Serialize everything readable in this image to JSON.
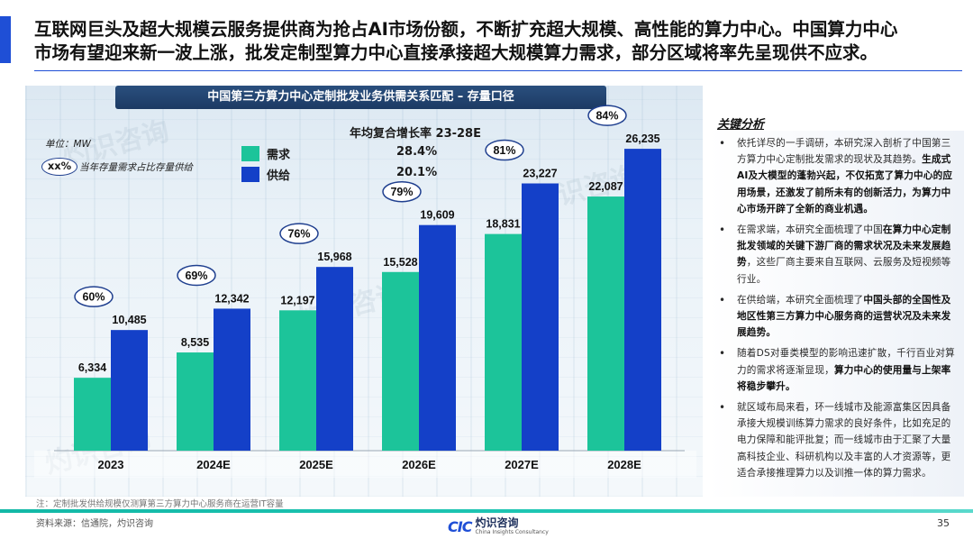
{
  "headline": {
    "line1": "互联网巨头及超大规模云服务提供商为抢占AI市场份额，不断扩充超大规模、高性能的算力中心。中国算力中心",
    "line2": "市场有望迎来新一波上涨，批发定制型算力中心直接承接超大规模算力需求，部分区域将率先呈现供不应求。"
  },
  "chart_data": {
    "type": "bar",
    "title": "中国第三方算力中心定制批发业务供需关系匹配 – 存量口径",
    "unit": "单位：MW",
    "categories": [
      "2023",
      "2024E",
      "2025E",
      "2026E",
      "2027E",
      "2028E"
    ],
    "series": [
      {
        "name": "需求",
        "color": "#1cc49a",
        "values": [
          6334,
          8535,
          12197,
          15528,
          18831,
          22087
        ],
        "labels": [
          "6,334",
          "8,535",
          "12,197",
          "15,528",
          "18,831",
          "22,087"
        ]
      },
      {
        "name": "供给",
        "color": "#1440c8",
        "values": [
          10485,
          12342,
          15968,
          19609,
          23227,
          26235
        ],
        "labels": [
          "10,485",
          "12,342",
          "15,968",
          "19,609",
          "23,227",
          "26,235"
        ]
      }
    ],
    "ratios": [
      "60%",
      "69%",
      "76%",
      "79%",
      "81%",
      "84%"
    ],
    "ratio_legend": {
      "symbol": "xx%",
      "text": "当年存量需求占比存量供给"
    },
    "cagr": {
      "title": "年均复合增长率 23-28E",
      "values": [
        "28.4%",
        "20.1%"
      ]
    },
    "ylim": [
      0,
      30000
    ]
  },
  "analysis": {
    "title": "关键分析",
    "items": [
      {
        "text": "依托详尽的一手调研，本研究深入剖析了中国第三方算力中心定制批发需求的现状及其趋势。",
        "bold": "生成式AI及大模型的蓬勃兴起，不仅拓宽了算力中心的应用场景，还激发了前所未有的创新活力，为算力中心市场开辟了全新的商业机遇。",
        "tail": ""
      },
      {
        "text": "在需求端，本研究全面梳理了中国",
        "bold": "在算力中心定制批发领域的关键下游厂商的需求状况及未来发展趋势",
        "tail": "，这些厂商主要来自互联网、云服务及短视频等行业。"
      },
      {
        "text": "在供给端，本研究全面梳理了",
        "bold": "中国头部的全国性及地区性第三方算力中心服务商的运营状况及未来发展趋势。",
        "tail": ""
      },
      {
        "text": "随着DS对垂类模型的影响迅速扩散，千行百业对算力的需求将逐渐显现，",
        "bold": "算力中心的使用量与上架率将稳步攀升。",
        "tail": ""
      },
      {
        "text": "就区域布局来看，环一线城市及能源富集区因具备承接大规模训练算力需求的良好条件，比如充足的电力保障和能评批复；而一线城市由于汇聚了大量高科技企业、科研机构以及丰富的人才资源等，更适合承接推理算力以及训推一体的算力需求。",
        "bold": "",
        "tail": ""
      }
    ]
  },
  "footer": {
    "note": "注：定制批发供给规模仅测算第三方算力中心服务商在运营IT容量",
    "source": "资料来源：信通院，灼识咨询",
    "logo_mark": "CIC",
    "logo_cn": "灼识咨询",
    "logo_en": "China Insights Consultancy",
    "page": "35"
  },
  "watermark": {
    "cn": "灼识咨询",
    "en": "China Insights Consultancy"
  },
  "colors": {
    "accent": "#1f4fd6",
    "demand": "#1cc49a",
    "supply": "#1440c8",
    "teal": "#12b8a6"
  }
}
